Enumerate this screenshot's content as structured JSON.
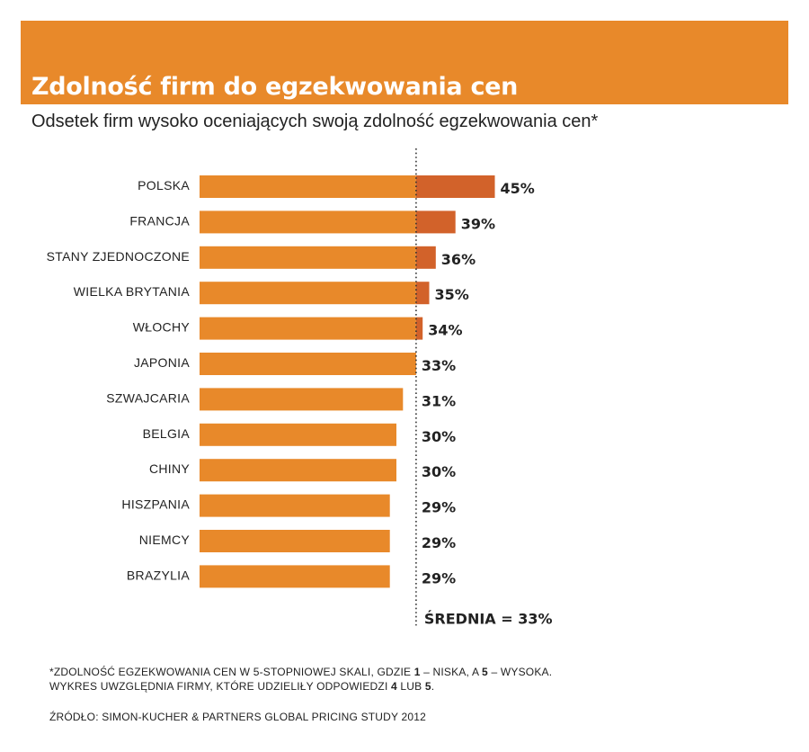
{
  "header": {
    "title": "Zdolność firm do egzekwowania cen",
    "subtitle": "Odsetek firm wysoko oceniających swoją zdolność egzekwowania cen*"
  },
  "colors": {
    "banner": "#E8892A",
    "bar_base": "#E8892A",
    "bar_above_average": "#D2622A",
    "text": "#222222"
  },
  "chart_data": {
    "type": "bar",
    "orientation": "horizontal",
    "categories": [
      "POLSKA",
      "FRANCJA",
      "STANY ZJEDNOCZONE",
      "WIELKA BRYTANIA",
      "WŁOCHY",
      "JAPONIA",
      "SZWAJCARIA",
      "BELGIA",
      "CHINY",
      "HISZPANIA",
      "NIEMCY",
      "BRAZYLIA"
    ],
    "values": [
      45,
      39,
      36,
      35,
      34,
      33,
      31,
      30,
      30,
      29,
      29,
      29
    ],
    "value_labels": [
      "45%",
      "39%",
      "36%",
      "35%",
      "34%",
      "33%",
      "31%",
      "30%",
      "30%",
      "29%",
      "29%",
      "29%"
    ],
    "unit": "%",
    "average": 33,
    "average_label": "ŚREDNIA = 33%",
    "reference_line": "dotted",
    "grid": false
  },
  "footnote": {
    "line1_parts": [
      "*ZDOLNOŚĆ EGZEKWOWANIA CEN W 5-STOPNIOWEJ SKALI, GDZIE ",
      "1",
      " – NISKA, A ",
      "5",
      " – WYSOKA."
    ],
    "line2_parts": [
      "WYKRES UWZGLĘDNIA FIRMY, KTÓRE UDZIELIŁY ODPOWIEDZI ",
      "4",
      " LUB ",
      "5",
      "."
    ],
    "source": "ŹRÓDŁO: SIMON-KUCHER & PARTNERS GLOBAL PRICING STUDY 2012"
  }
}
